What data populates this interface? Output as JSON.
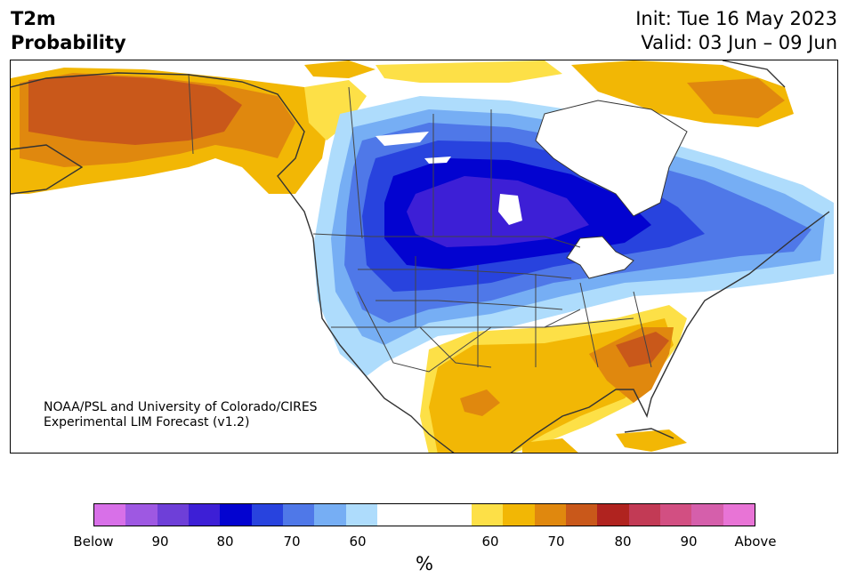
{
  "header": {
    "title_line1": "T2m",
    "title_line2": "Probability",
    "init": "Init: Tue 16 May 2023",
    "valid": "Valid: 03 Jun – 09 Jun"
  },
  "credit": {
    "line1": "NOAA/PSL and University of Colorado/CIRES",
    "line2": "Experimental LIM Forecast (v1.2)"
  },
  "colorbar": {
    "label": "%",
    "colors": [
      "#d870e8",
      "#9e58e2",
      "#6e3fd8",
      "#3d1fd6",
      "#0303d0",
      "#2843de",
      "#4f78e8",
      "#76aef4",
      "#aedcfc",
      "#ffffff",
      "#fde047",
      "#f2b705",
      "#e0880e",
      "#c9581a",
      "#b0231f",
      "#c23a55",
      "#d24f82",
      "#d55fab",
      "#e874d6"
    ],
    "ticks": [
      "Below",
      "90",
      "80",
      "70",
      "60",
      "60",
      "70",
      "80",
      "90",
      "Above"
    ]
  },
  "map": {
    "palette": {
      "land": "#ffffff",
      "border": "#444444",
      "coast": "#333333",
      "below_60": "#aedcfc",
      "below_70": "#76aef4",
      "below_75": "#4f78e8",
      "below_80": "#2843de",
      "below_85": "#0303d0",
      "below_90": "#3d1fd6",
      "above_60": "#fde047",
      "above_65": "#f2b705",
      "above_70": "#e0880e",
      "above_75": "#c9581a"
    }
  }
}
